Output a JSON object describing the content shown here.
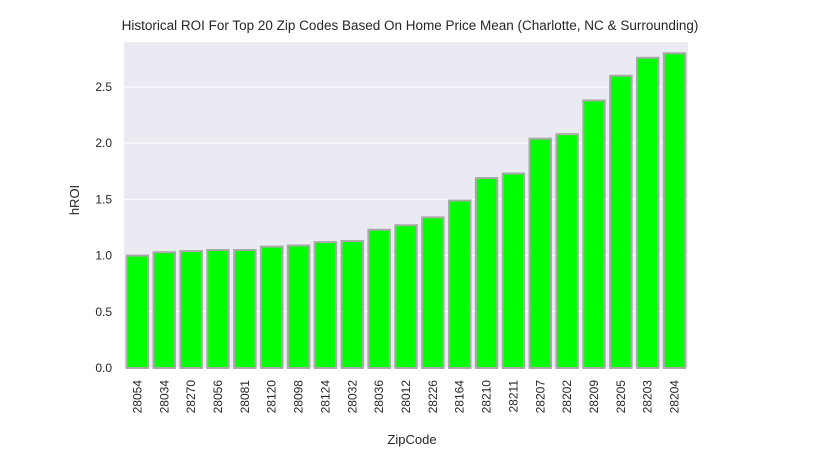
{
  "chart_data": {
    "type": "bar",
    "title": "Historical ROI For Top 20 Zip Codes Based On Home Price Mean (Charlotte, NC & Surrounding)",
    "xlabel": "ZipCode",
    "ylabel": "hROI",
    "categories": [
      "28054",
      "28034",
      "28270",
      "28056",
      "28081",
      "28120",
      "28098",
      "28124",
      "28032",
      "28036",
      "28012",
      "28226",
      "28164",
      "28210",
      "28211",
      "28207",
      "28202",
      "28209",
      "28205",
      "28203",
      "28204"
    ],
    "values": [
      1.0,
      1.03,
      1.04,
      1.05,
      1.05,
      1.08,
      1.09,
      1.12,
      1.13,
      1.23,
      1.27,
      1.34,
      1.49,
      1.69,
      1.73,
      2.04,
      2.08,
      2.38,
      2.6,
      2.76,
      2.8
    ],
    "yticks": [
      "0.0",
      "0.5",
      "1.0",
      "1.5",
      "2.0",
      "2.5"
    ],
    "ylim": [
      0,
      2.9
    ],
    "grid": true,
    "colors": {
      "bar_fill": "#00ff00",
      "bar_edge": "#a9a9a9",
      "plot_background": "#eaeaf2",
      "grid": "#ffffff"
    }
  }
}
